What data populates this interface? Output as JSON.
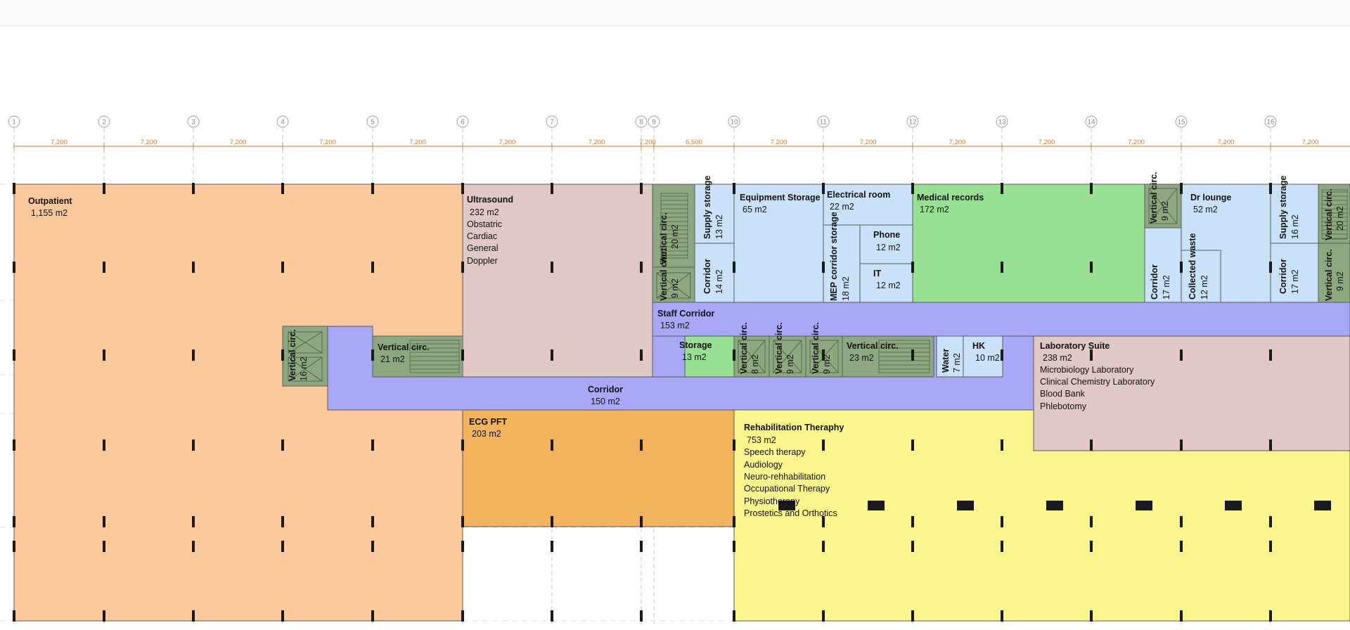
{
  "grid_lines": [
    "1",
    "2",
    "3",
    "4",
    "5",
    "6",
    "7",
    "8",
    "9",
    "10",
    "11",
    "12",
    "13",
    "14",
    "15",
    "16"
  ],
  "dimensions": [
    "7,200",
    "7,200",
    "7,200",
    "7,200",
    "7,200",
    "7,200",
    "7,200",
    "7,200",
    "6,500",
    "7,200",
    "7,200",
    "7,200",
    "7,200",
    "7,200",
    "7,200",
    "7,200"
  ],
  "colors": {
    "outpatient": "#fbc89c",
    "ultrasound": "#dfc8c6",
    "circulation": "#8da880",
    "support": "#c9e2fa",
    "medical_records": "#97df92",
    "corridor": "#a8a8f6",
    "ecg": "#f3b35d",
    "rehab": "#fbf58e",
    "lab": "#dfc8c6",
    "dimension": "#d0792b",
    "column": "#1a1a1a"
  },
  "rooms": {
    "outpatient": {
      "name": "Outpatient",
      "area": "1,155 m2"
    },
    "ultrasound": {
      "name": "Ultrasound",
      "area": "232 m2",
      "lines": [
        "Obstatric",
        "Cardiac",
        "General",
        "Doppler"
      ]
    },
    "vc_left_a": {
      "name": "Vertical circ.",
      "area": "16 m2"
    },
    "vc_left_b": {
      "name": "Vertical circ.",
      "area": "21 m2"
    },
    "corridor_main": {
      "name": "Corridor",
      "area": "150 m2"
    },
    "ecg_pft": {
      "name": "ECG PFT",
      "area": "203 m2"
    },
    "vc_top_a": {
      "name": "Vertical circ.",
      "area": "20 m2"
    },
    "vc_top_b": {
      "name": "Vertical circ.",
      "area": "9 m2"
    },
    "supply_storage_a": {
      "name": "Supply storage",
      "area": "13 m2"
    },
    "corridor_a": {
      "name": "Corridor",
      "area": "14 m2"
    },
    "equipment_storage": {
      "name": "Equipment Storage",
      "area": "65 m2"
    },
    "electrical_room": {
      "name": "Electrical room",
      "area": "22 m2"
    },
    "mep_storage": {
      "name": "MEP corridor storage",
      "area": "18 m2"
    },
    "phone": {
      "name": "Phone",
      "area": "12 m2"
    },
    "it": {
      "name": "IT",
      "area": "12 m2"
    },
    "medical_records": {
      "name": "Medical records",
      "area": "172 m2"
    },
    "vc_top_c": {
      "name": "Vertical circ.",
      "area": "9 m2"
    },
    "corridor_b": {
      "name": "Corridor",
      "area": "17 m2"
    },
    "collected_waste": {
      "name": "Collected waste",
      "area": "12 m2"
    },
    "dr_lounge": {
      "name": "Dr lounge",
      "area": "52 m2"
    },
    "supply_storage_b": {
      "name": "Supply storage",
      "area": "16 m2"
    },
    "corridor_c": {
      "name": "Corridor",
      "area": "17 m2"
    },
    "vc_top_d": {
      "name": "Vertical circ.",
      "area": "20 m2"
    },
    "vc_top_e": {
      "name": "Vertical circ.",
      "area": "9 m2"
    },
    "staff_corridor": {
      "name": "Staff Corridor",
      "area": "153 m2"
    },
    "storage": {
      "name": "Storage",
      "area": "13 m2"
    },
    "vc_mid_a": {
      "name": "Vertical circ.",
      "area": "8 m2"
    },
    "vc_mid_b": {
      "name": "Vertical circ.",
      "area": "9 m2"
    },
    "vc_mid_c": {
      "name": "Vertical circ.",
      "area": "9 m2"
    },
    "vc_mid_d": {
      "name": "Vertical circ.",
      "area": "23 m2"
    },
    "water": {
      "name": "Water",
      "area": "7 m2"
    },
    "hk": {
      "name": "HK",
      "area": "10 m2"
    },
    "laboratory": {
      "name": "Laboratory Suite",
      "area": "238 m2",
      "lines": [
        "Microbiology Laboratory",
        "Clinical Chemistry Laboratory",
        "Blood Bank",
        "Phlebotomy"
      ]
    },
    "rehab": {
      "name": "Rehabilitation Theraphy",
      "area": "753 m2",
      "lines": [
        "Speech therapy",
        "Audiology",
        "Neuro-rehhabilitation",
        "Occupational Therapy",
        "Physiotherapy",
        "Prostetics and Orthotics"
      ]
    }
  }
}
